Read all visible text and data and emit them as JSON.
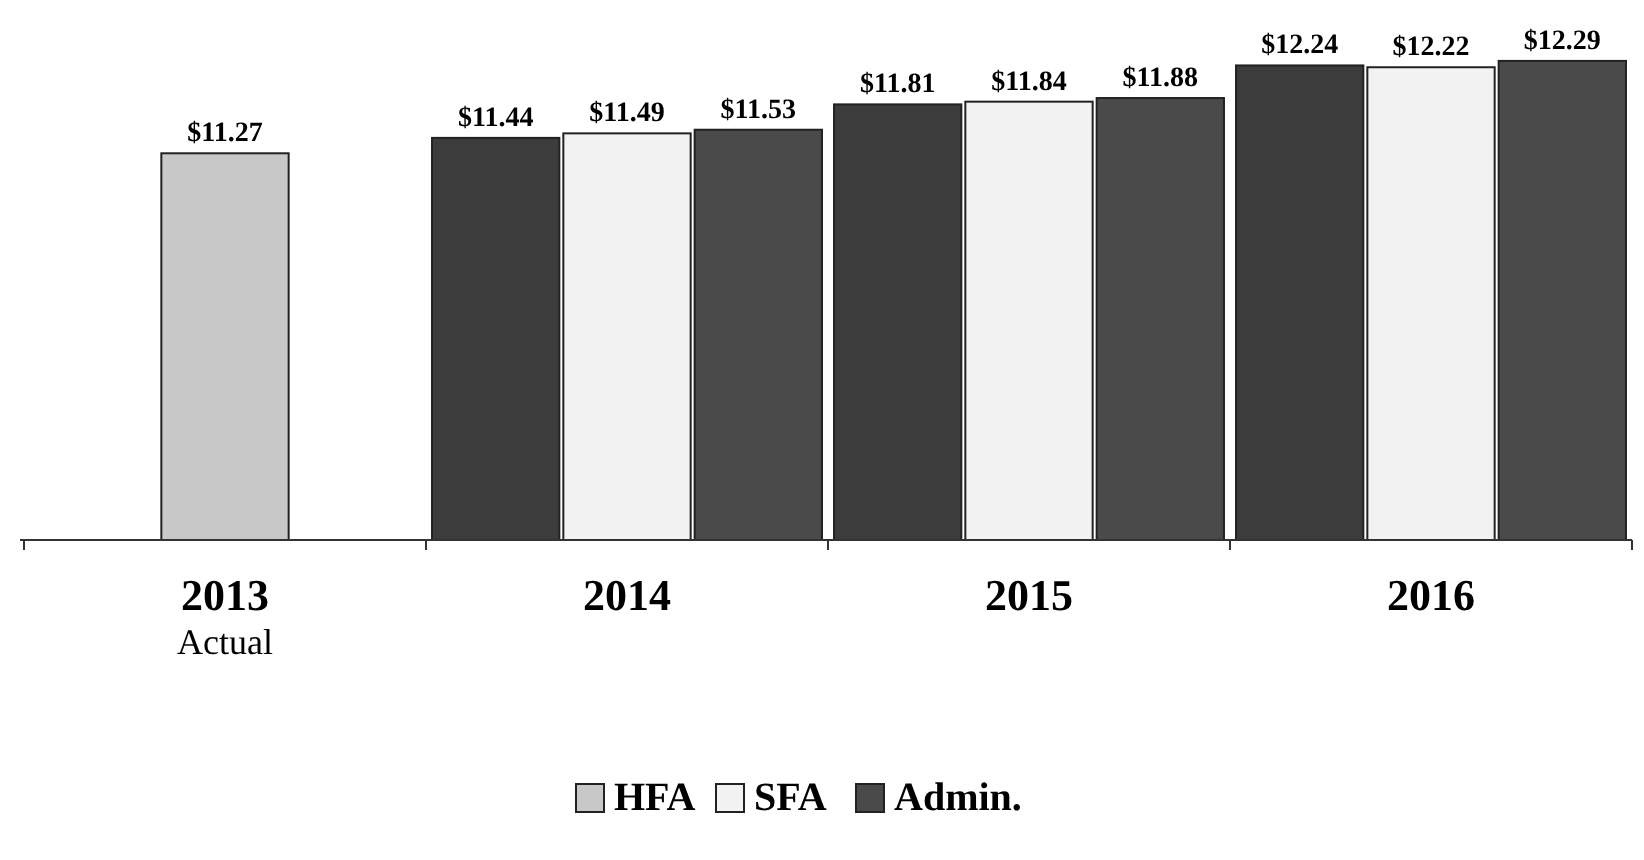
{
  "chart_data": {
    "type": "bar",
    "categories": [
      "2013\nActual",
      "2014",
      "2015",
      "2016"
    ],
    "series": [
      {
        "name": "HFA",
        "color": "#c8c8c8",
        "colors": [
          "#c8c8c8",
          "#3c3c3c",
          "#3c3c3c",
          "#3c3c3c"
        ],
        "values": [
          11.27,
          11.44,
          11.81,
          12.24
        ],
        "value_labels": [
          "$11.27",
          "$11.44",
          "$11.81",
          "$12.24"
        ]
      },
      {
        "name": "SFA",
        "color": "#f2f2f2",
        "values": [
          null,
          11.49,
          11.84,
          12.22
        ],
        "value_labels": [
          null,
          "$11.49",
          "$11.84",
          "$12.22"
        ]
      },
      {
        "name": "Admin.",
        "color": "#4a4a4a",
        "values": [
          null,
          11.53,
          11.88,
          12.29
        ],
        "value_labels": [
          null,
          "$11.53",
          "$11.88",
          "$12.29"
        ]
      }
    ],
    "ylim": [
      7,
      12.3
    ],
    "tick_labels": "x",
    "legend": "bottom"
  }
}
